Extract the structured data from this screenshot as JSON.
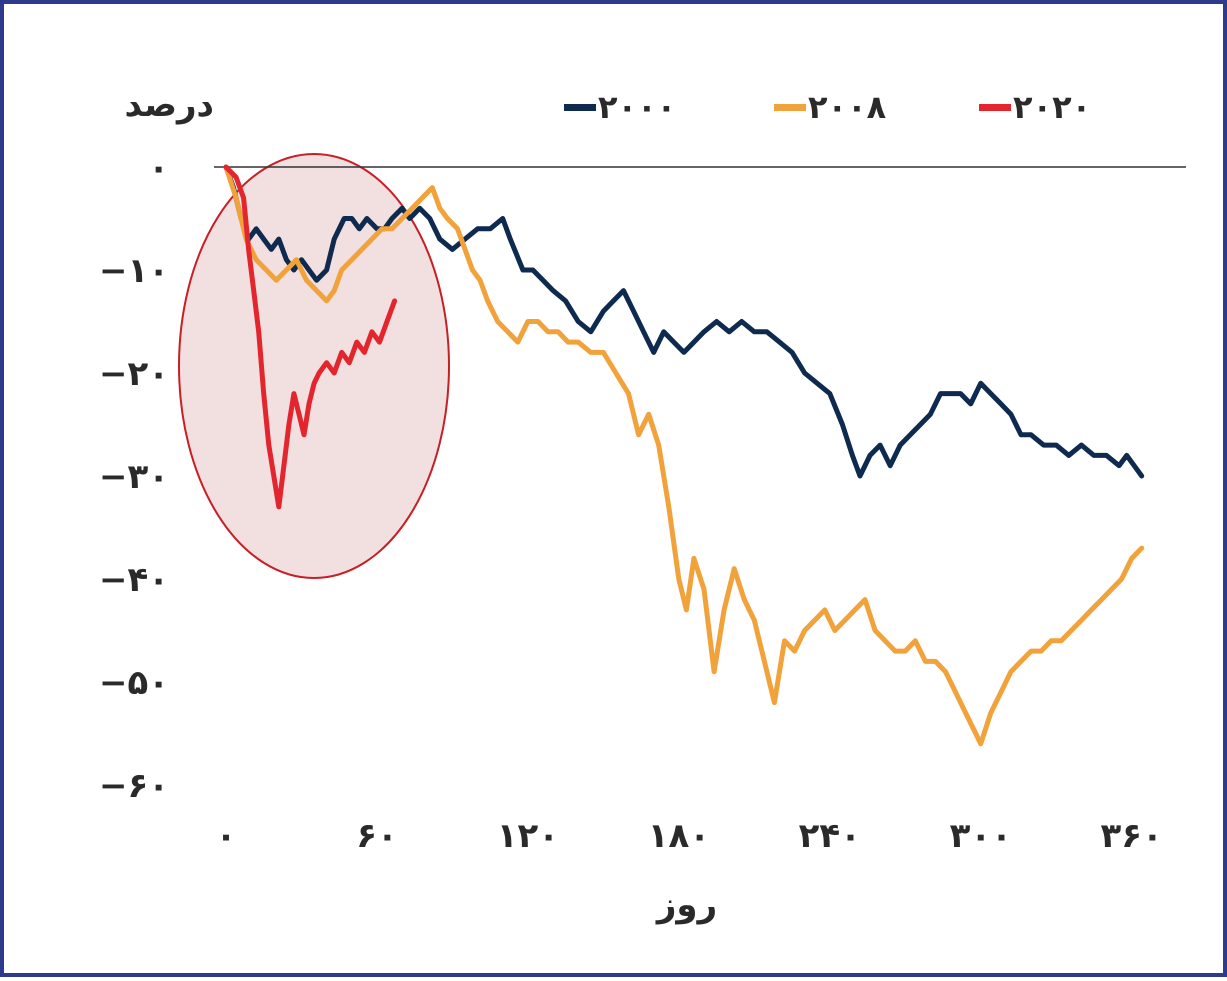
{
  "chart_data": {
    "type": "line",
    "ylabel": "درصد",
    "xlabel": "روز",
    "xlim": [
      0,
      380
    ],
    "ylim": [
      -60,
      0
    ],
    "x_ticks": [
      {
        "value": 0,
        "label": "۰"
      },
      {
        "value": 60,
        "label": "۶۰"
      },
      {
        "value": 120,
        "label": "۱۲۰"
      },
      {
        "value": 180,
        "label": "۱۸۰"
      },
      {
        "value": 240,
        "label": "۲۴۰"
      },
      {
        "value": 300,
        "label": "۳۰۰"
      },
      {
        "value": 360,
        "label": "۳۶۰"
      }
    ],
    "y_ticks": [
      {
        "value": 0,
        "label": "۰"
      },
      {
        "value": -10,
        "label": "−۱۰"
      },
      {
        "value": -20,
        "label": "−۲۰"
      },
      {
        "value": -30,
        "label": "−۳۰"
      },
      {
        "value": -40,
        "label": "−۴۰"
      },
      {
        "value": -50,
        "label": "−۵۰"
      },
      {
        "value": -60,
        "label": "−۶۰"
      }
    ],
    "legend_placement": "top",
    "series": [
      {
        "name": "۲۰۰۰",
        "color": "#0f2a4f",
        "points": [
          [
            0,
            0
          ],
          [
            3,
            -2
          ],
          [
            6,
            -5
          ],
          [
            9,
            -7
          ],
          [
            12,
            -6
          ],
          [
            15,
            -7
          ],
          [
            18,
            -8
          ],
          [
            21,
            -7
          ],
          [
            24,
            -9
          ],
          [
            27,
            -10
          ],
          [
            30,
            -9
          ],
          [
            33,
            -10
          ],
          [
            36,
            -11
          ],
          [
            40,
            -10
          ],
          [
            43,
            -7
          ],
          [
            47,
            -5
          ],
          [
            50,
            -5
          ],
          [
            53,
            -6
          ],
          [
            56,
            -5
          ],
          [
            60,
            -6
          ],
          [
            63,
            -6
          ],
          [
            66,
            -5
          ],
          [
            70,
            -4
          ],
          [
            73,
            -5
          ],
          [
            77,
            -4
          ],
          [
            81,
            -5
          ],
          [
            85,
            -7
          ],
          [
            90,
            -8
          ],
          [
            95,
            -7
          ],
          [
            100,
            -6
          ],
          [
            105,
            -6
          ],
          [
            110,
            -5
          ],
          [
            113,
            -7
          ],
          [
            118,
            -10
          ],
          [
            122,
            -10
          ],
          [
            126,
            -11
          ],
          [
            130,
            -12
          ],
          [
            135,
            -13
          ],
          [
            140,
            -15
          ],
          [
            145,
            -16
          ],
          [
            150,
            -14
          ],
          [
            154,
            -13
          ],
          [
            158,
            -12
          ],
          [
            162,
            -14
          ],
          [
            166,
            -16
          ],
          [
            170,
            -18
          ],
          [
            174,
            -16
          ],
          [
            178,
            -17
          ],
          [
            182,
            -18
          ],
          [
            186,
            -17
          ],
          [
            190,
            -16
          ],
          [
            195,
            -15
          ],
          [
            200,
            -16
          ],
          [
            205,
            -15
          ],
          [
            210,
            -16
          ],
          [
            215,
            -16
          ],
          [
            220,
            -17
          ],
          [
            225,
            -18
          ],
          [
            230,
            -20
          ],
          [
            235,
            -21
          ],
          [
            240,
            -22
          ],
          [
            245,
            -25
          ],
          [
            249,
            -28
          ],
          [
            252,
            -30
          ],
          [
            256,
            -28
          ],
          [
            260,
            -27
          ],
          [
            264,
            -29
          ],
          [
            268,
            -27
          ],
          [
            272,
            -26
          ],
          [
            276,
            -25
          ],
          [
            280,
            -24
          ],
          [
            284,
            -22
          ],
          [
            288,
            -22
          ],
          [
            292,
            -22
          ],
          [
            296,
            -23
          ],
          [
            300,
            -21
          ],
          [
            304,
            -22
          ],
          [
            308,
            -23
          ],
          [
            312,
            -24
          ],
          [
            316,
            -26
          ],
          [
            320,
            -26
          ],
          [
            325,
            -27
          ],
          [
            330,
            -27
          ],
          [
            335,
            -28
          ],
          [
            340,
            -27
          ],
          [
            345,
            -28
          ],
          [
            350,
            -28
          ],
          [
            355,
            -29
          ],
          [
            358,
            -28
          ],
          [
            361,
            -29
          ],
          [
            364,
            -30
          ]
        ]
      },
      {
        "name": "۲۰۰۸",
        "color": "#f2a23a",
        "points": [
          [
            0,
            0
          ],
          [
            4,
            -3
          ],
          [
            8,
            -7
          ],
          [
            12,
            -9
          ],
          [
            16,
            -10
          ],
          [
            20,
            -11
          ],
          [
            24,
            -10
          ],
          [
            28,
            -9
          ],
          [
            32,
            -11
          ],
          [
            36,
            -12
          ],
          [
            40,
            -13
          ],
          [
            43,
            -12
          ],
          [
            46,
            -10
          ],
          [
            50,
            -9
          ],
          [
            54,
            -8
          ],
          [
            58,
            -7
          ],
          [
            62,
            -6
          ],
          [
            66,
            -6
          ],
          [
            70,
            -5
          ],
          [
            74,
            -4
          ],
          [
            78,
            -3
          ],
          [
            82,
            -2
          ],
          [
            85,
            -4
          ],
          [
            88,
            -5
          ],
          [
            92,
            -6
          ],
          [
            95,
            -8
          ],
          [
            98,
            -10
          ],
          [
            101,
            -11
          ],
          [
            104,
            -13
          ],
          [
            108,
            -15
          ],
          [
            112,
            -16
          ],
          [
            116,
            -17
          ],
          [
            120,
            -15
          ],
          [
            124,
            -15
          ],
          [
            128,
            -16
          ],
          [
            132,
            -16
          ],
          [
            136,
            -17
          ],
          [
            140,
            -17
          ],
          [
            145,
            -18
          ],
          [
            150,
            -18
          ],
          [
            155,
            -20
          ],
          [
            160,
            -22
          ],
          [
            164,
            -26
          ],
          [
            168,
            -24
          ],
          [
            172,
            -27
          ],
          [
            176,
            -33
          ],
          [
            180,
            -40
          ],
          [
            183,
            -43
          ],
          [
            186,
            -38
          ],
          [
            190,
            -41
          ],
          [
            194,
            -49
          ],
          [
            198,
            -43
          ],
          [
            202,
            -39
          ],
          [
            206,
            -42
          ],
          [
            210,
            -44
          ],
          [
            214,
            -48
          ],
          [
            218,
            -52
          ],
          [
            222,
            -46
          ],
          [
            226,
            -47
          ],
          [
            230,
            -45
          ],
          [
            234,
            -44
          ],
          [
            238,
            -43
          ],
          [
            242,
            -45
          ],
          [
            246,
            -44
          ],
          [
            250,
            -43
          ],
          [
            254,
            -42
          ],
          [
            258,
            -45
          ],
          [
            262,
            -46
          ],
          [
            266,
            -47
          ],
          [
            270,
            -47
          ],
          [
            274,
            -46
          ],
          [
            278,
            -48
          ],
          [
            282,
            -48
          ],
          [
            286,
            -49
          ],
          [
            290,
            -51
          ],
          [
            294,
            -53
          ],
          [
            298,
            -55
          ],
          [
            300,
            -56
          ],
          [
            304,
            -53
          ],
          [
            308,
            -51
          ],
          [
            312,
            -49
          ],
          [
            316,
            -48
          ],
          [
            320,
            -47
          ],
          [
            324,
            -47
          ],
          [
            328,
            -46
          ],
          [
            332,
            -46
          ],
          [
            336,
            -45
          ],
          [
            340,
            -44
          ],
          [
            344,
            -43
          ],
          [
            348,
            -42
          ],
          [
            352,
            -41
          ],
          [
            356,
            -40
          ],
          [
            360,
            -38
          ],
          [
            364,
            -37
          ]
        ]
      },
      {
        "name": "۲۰۲۰",
        "color": "#e3262d",
        "points": [
          [
            0,
            0
          ],
          [
            4,
            -1
          ],
          [
            7,
            -3
          ],
          [
            9,
            -8
          ],
          [
            11,
            -12
          ],
          [
            13,
            -16
          ],
          [
            15,
            -22
          ],
          [
            17,
            -27
          ],
          [
            19,
            -30
          ],
          [
            21,
            -33
          ],
          [
            23,
            -29
          ],
          [
            25,
            -25
          ],
          [
            27,
            -22
          ],
          [
            29,
            -24
          ],
          [
            31,
            -26
          ],
          [
            33,
            -23
          ],
          [
            35,
            -21
          ],
          [
            37,
            -20
          ],
          [
            40,
            -19
          ],
          [
            43,
            -20
          ],
          [
            46,
            -18
          ],
          [
            49,
            -19
          ],
          [
            52,
            -17
          ],
          [
            55,
            -18
          ],
          [
            58,
            -16
          ],
          [
            61,
            -17
          ],
          [
            64,
            -15
          ],
          [
            67,
            -13
          ]
        ]
      }
    ]
  }
}
